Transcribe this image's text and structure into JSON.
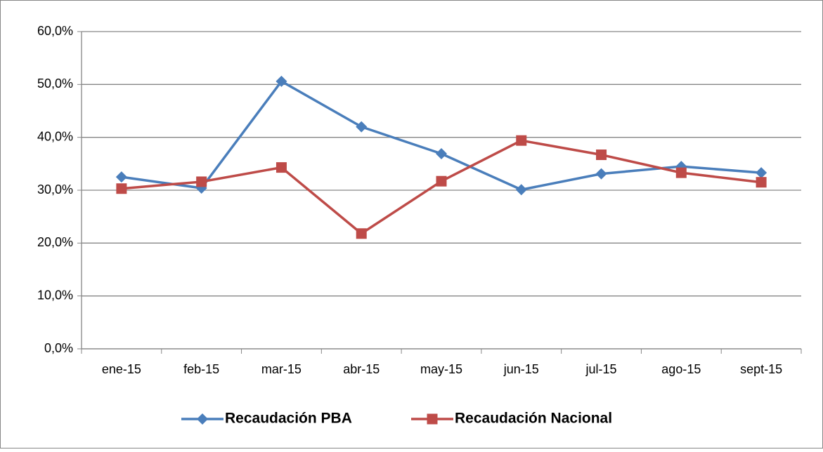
{
  "chart_data": {
    "type": "line",
    "categories": [
      "ene-15",
      "feb-15",
      "mar-15",
      "abr-15",
      "may-15",
      "jun-15",
      "jul-15",
      "ago-15",
      "sept-15"
    ],
    "series": [
      {
        "name": "Recaudación PBA",
        "color": "#4a7ebb",
        "marker": "diamond",
        "values": [
          32.5,
          30.4,
          50.6,
          42.0,
          36.9,
          30.1,
          33.1,
          34.5,
          33.3
        ]
      },
      {
        "name": "Recaudación Nacional",
        "color": "#be4b48",
        "marker": "square",
        "values": [
          30.3,
          31.6,
          34.3,
          21.8,
          31.7,
          39.4,
          36.7,
          33.3,
          31.5
        ]
      }
    ],
    "ylim": [
      0,
      60
    ],
    "yticks": [
      {
        "value": 0,
        "label": "0,0%"
      },
      {
        "value": 10,
        "label": "10,0%"
      },
      {
        "value": 20,
        "label": "20,0%"
      },
      {
        "value": 30,
        "label": "30,0%"
      },
      {
        "value": 40,
        "label": "40,0%"
      },
      {
        "value": 50,
        "label": "50,0%"
      },
      {
        "value": 60,
        "label": "60,0%"
      }
    ],
    "grid": true,
    "legend": "bottom"
  }
}
